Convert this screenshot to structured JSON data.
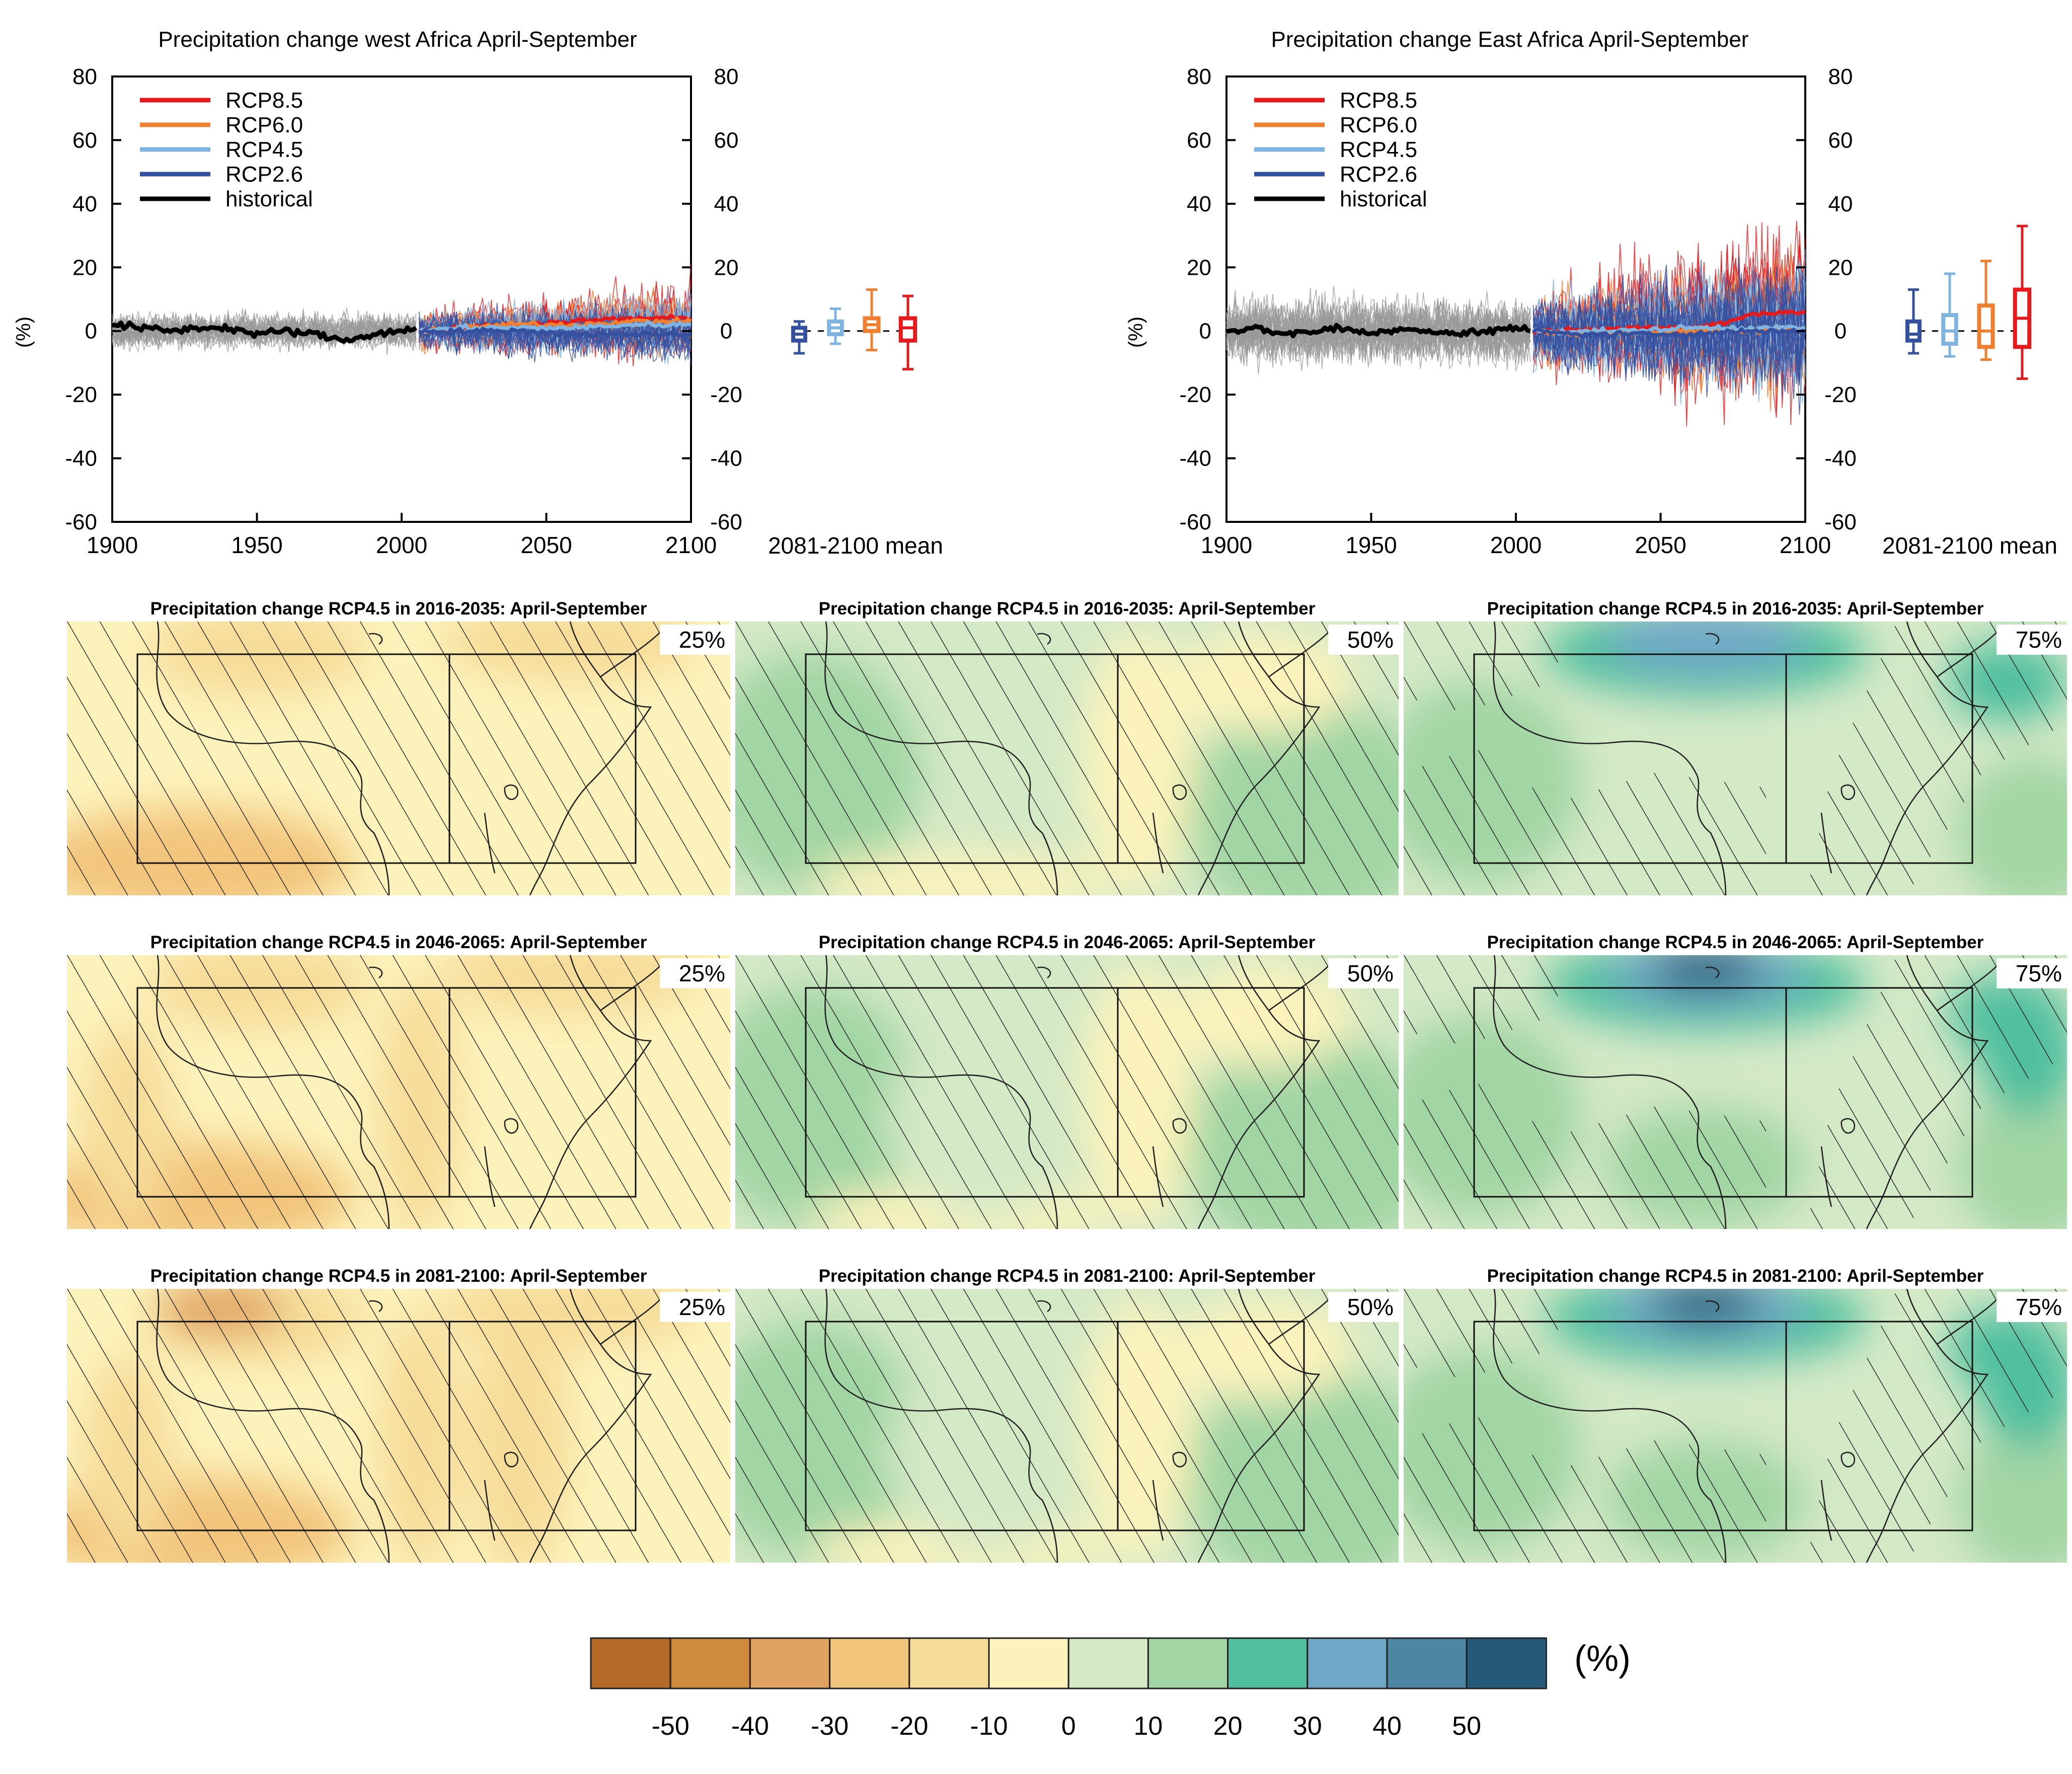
{
  "colors": {
    "rcp85": "#e41a1c",
    "rcp60": "#f08030",
    "rcp45": "#7fb4e0",
    "rcp26": "#3650a0",
    "historical": "#000000",
    "model_spread": "#999999"
  },
  "chart_data": [
    {
      "type": "line",
      "id": "west-africa-timeseries",
      "title": "Precipitation change west Africa April-September",
      "ylabel": "(%)",
      "xlabel": "",
      "xlim": [
        1900,
        2100
      ],
      "ylim": [
        -60,
        80
      ],
      "x_ticks": [
        1900,
        1950,
        2000,
        2050,
        2100
      ],
      "y_ticks": [
        -60,
        -40,
        -20,
        0,
        20,
        40,
        60,
        80
      ],
      "grid": false,
      "legend_position": "top-left",
      "legend": [
        "RCP8.5",
        "RCP6.0",
        "RCP4.5",
        "RCP2.6",
        "historical"
      ],
      "series": [
        {
          "name": "historical",
          "x": [
            1900,
            1910,
            1920,
            1930,
            1940,
            1950,
            1960,
            1970,
            1980,
            1990,
            2000,
            2005
          ],
          "values": [
            2,
            1,
            0,
            1,
            1,
            -1,
            0,
            -1,
            -3,
            -1,
            0,
            1
          ]
        },
        {
          "name": "RCP2.6",
          "x": [
            2006,
            2020,
            2040,
            2060,
            2080,
            2100
          ],
          "values": [
            0,
            0,
            0,
            -1,
            -1,
            -1
          ]
        },
        {
          "name": "RCP4.5",
          "x": [
            2006,
            2020,
            2040,
            2060,
            2080,
            2100
          ],
          "values": [
            0,
            1,
            1,
            1,
            2,
            2
          ]
        },
        {
          "name": "RCP6.0",
          "x": [
            2006,
            2020,
            2040,
            2060,
            2080,
            2100
          ],
          "values": [
            0,
            1,
            2,
            2,
            3,
            3
          ]
        },
        {
          "name": "RCP8.5",
          "x": [
            2006,
            2020,
            2040,
            2060,
            2080,
            2100
          ],
          "values": [
            0,
            1,
            2,
            3,
            4,
            4
          ]
        }
      ],
      "summary_label": "2081-2100 mean",
      "summary_boxes": [
        {
          "name": "RCP2.6",
          "min": -7,
          "q1": -3,
          "median": -1,
          "q3": 1,
          "max": 3
        },
        {
          "name": "RCP4.5",
          "min": -4,
          "q1": -1,
          "median": 1,
          "q3": 3,
          "max": 7
        },
        {
          "name": "RCP6.0",
          "min": -6,
          "q1": 0,
          "median": 2,
          "q3": 4,
          "max": 13
        },
        {
          "name": "RCP8.5",
          "min": -12,
          "q1": -3,
          "median": 1,
          "q3": 4,
          "max": 11
        }
      ]
    },
    {
      "type": "line",
      "id": "east-africa-timeseries",
      "title": "Precipitation change East Africa April-September",
      "ylabel": "(%)",
      "xlabel": "",
      "xlim": [
        1900,
        2100
      ],
      "ylim": [
        -60,
        80
      ],
      "x_ticks": [
        1900,
        1950,
        2000,
        2050,
        2100
      ],
      "y_ticks": [
        -60,
        -40,
        -20,
        0,
        20,
        40,
        60,
        80
      ],
      "grid": false,
      "legend_position": "top-left",
      "legend": [
        "RCP8.5",
        "RCP6.0",
        "RCP4.5",
        "RCP2.6",
        "historical"
      ],
      "series": [
        {
          "name": "historical",
          "x": [
            1900,
            1910,
            1920,
            1930,
            1940,
            1950,
            1960,
            1970,
            1980,
            1990,
            2000,
            2005
          ],
          "values": [
            0,
            1,
            -1,
            0,
            1,
            -1,
            1,
            0,
            -1,
            0,
            1,
            0
          ]
        },
        {
          "name": "RCP2.6",
          "x": [
            2006,
            2020,
            2040,
            2060,
            2080,
            2100
          ],
          "values": [
            0,
            -1,
            -1,
            -1,
            0,
            0
          ]
        },
        {
          "name": "RCP4.5",
          "x": [
            2006,
            2020,
            2040,
            2060,
            2080,
            2100
          ],
          "values": [
            0,
            0,
            0,
            1,
            1,
            1
          ]
        },
        {
          "name": "RCP6.0",
          "x": [
            2006,
            2020,
            2040,
            2060,
            2080,
            2100
          ],
          "values": [
            0,
            -1,
            0,
            0,
            0,
            1
          ]
        },
        {
          "name": "RCP8.5",
          "x": [
            2006,
            2020,
            2040,
            2060,
            2075,
            2080,
            2090,
            2100
          ],
          "values": [
            0,
            0,
            1,
            1,
            3,
            5,
            6,
            6
          ]
        }
      ],
      "summary_label": "2081-2100 mean",
      "summary_boxes": [
        {
          "name": "RCP2.6",
          "min": -7,
          "q1": -3,
          "median": -1,
          "q3": 3,
          "max": 13
        },
        {
          "name": "RCP4.5",
          "min": -8,
          "q1": -4,
          "median": 0,
          "q3": 5,
          "max": 18
        },
        {
          "name": "RCP6.0",
          "min": -9,
          "q1": -5,
          "median": 0,
          "q3": 8,
          "max": 22
        },
        {
          "name": "RCP8.5",
          "min": -15,
          "q1": -5,
          "median": 4,
          "q3": 13,
          "max": 33
        }
      ]
    },
    {
      "type": "heatmap",
      "id": "precipitation-maps",
      "titles": [
        "Precipitation change RCP4.5 in 2016-2035: April-September",
        "Precipitation change RCP4.5 in 2046-2065: April-September",
        "Precipitation change RCP4.5 in 2081-2100: April-September"
      ],
      "percentiles": [
        "25%",
        "50%",
        "75%"
      ],
      "colorbar": {
        "unit": "(%)",
        "ticks": [
          "-50",
          "-40",
          "-30",
          "-20",
          "-10",
          "0",
          "10",
          "20",
          "30",
          "40",
          "50"
        ],
        "colors": [
          "#b56a28",
          "#cf8a3e",
          "#e0a261",
          "#f2c57c",
          "#f6dc99",
          "#fcf3bc",
          "#d4e9c6",
          "#a2d5a4",
          "#4fbf9f",
          "#6ea8c6",
          "#4c86a3",
          "#245a78"
        ]
      }
    }
  ]
}
